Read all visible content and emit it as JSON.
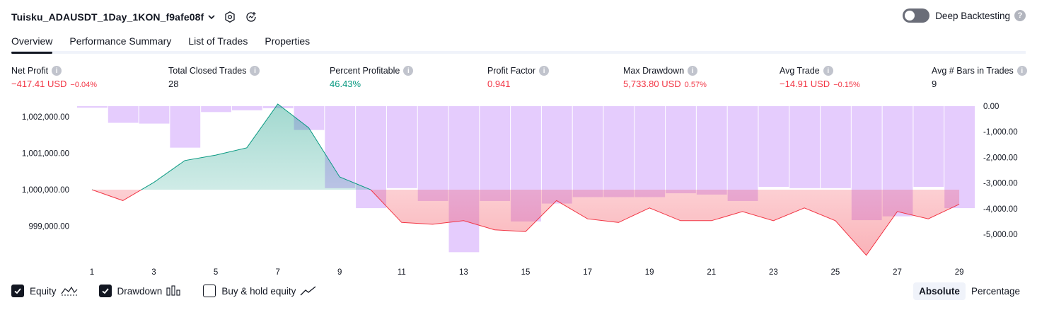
{
  "header": {
    "strategy_name": "Tuisku_ADAUSDT_1Day_1KON_f9afe08f"
  },
  "deep_backtesting": {
    "label": "Deep Backtesting",
    "enabled": false,
    "help": "?"
  },
  "tabs": [
    {
      "label": "Overview",
      "active": true
    },
    {
      "label": "Performance Summary",
      "active": false
    },
    {
      "label": "List of Trades",
      "active": false
    },
    {
      "label": "Properties",
      "active": false
    }
  ],
  "metrics": [
    {
      "label": "Net Profit",
      "value": "−417.41 USD",
      "pct": "−0.04%",
      "color": "red"
    },
    {
      "label": "Total Closed Trades",
      "value": "28",
      "pct": "",
      "color": "dark"
    },
    {
      "label": "Percent Profitable",
      "value": "46.43%",
      "pct": "",
      "color": "green"
    },
    {
      "label": "Profit Factor",
      "value": "0.941",
      "pct": "",
      "color": "red"
    },
    {
      "label": "Max Drawdown",
      "value": "5,733.80 USD",
      "pct": "0.57%",
      "color": "red"
    },
    {
      "label": "Avg Trade",
      "value": "−14.91 USD",
      "pct": "−0.15%",
      "color": "red"
    },
    {
      "label": "Avg # Bars in Trades",
      "value": "9",
      "pct": "",
      "color": "dark"
    }
  ],
  "chart_data": {
    "type": "line+bar",
    "x_ticks": [
      "1",
      "3",
      "5",
      "7",
      "9",
      "11",
      "13",
      "15",
      "17",
      "19",
      "21",
      "23",
      "25",
      "27",
      "29"
    ],
    "left_axis": {
      "ticks": [
        "1,002,000.00",
        "1,001,000.00",
        "1,000,000.00",
        "999,000.00"
      ],
      "tick_values": [
        1002000,
        1001000,
        1000000,
        999000
      ],
      "range": [
        998000,
        1002300
      ]
    },
    "right_axis": {
      "ticks": [
        "0.00",
        "-1,000.00",
        "-2,000.00",
        "-3,000.00",
        "-4,000.00",
        "-5,000.00"
      ],
      "tick_values": [
        0,
        -1000,
        -2000,
        -3000,
        -4000,
        -5000
      ],
      "range": [
        -5700,
        0
      ]
    },
    "equity": {
      "name": "Equity",
      "x": [
        1,
        2,
        3,
        4,
        5,
        6,
        7,
        8,
        9,
        10,
        11,
        12,
        13,
        14,
        15,
        16,
        17,
        18,
        19,
        20,
        21,
        22,
        23,
        24,
        25,
        26,
        27,
        28,
        29
      ],
      "values": [
        1000000,
        999700,
        1000200,
        1000800,
        1000950,
        1001150,
        1002350,
        1001700,
        1000350,
        1000000,
        999100,
        999050,
        999150,
        998900,
        998850,
        999700,
        999200,
        999100,
        999500,
        999150,
        999150,
        999400,
        999150,
        999500,
        999150,
        998200,
        999400,
        999200,
        999600
      ]
    },
    "drawdown": {
      "name": "Drawdown",
      "values": [
        -60,
        -650,
        -680,
        -1620,
        -230,
        -160,
        -80,
        -930,
        -3200,
        -3980,
        -3200,
        -3700,
        -5700,
        -3700,
        -4500,
        -3800,
        -3550,
        -3550,
        -3550,
        -3400,
        -3450,
        -3700,
        -3150,
        -3200,
        -3200,
        -4450,
        -4300,
        -3150,
        -3980
      ]
    },
    "buy_hold": {
      "name": "Buy & hold equity",
      "visible": false
    }
  },
  "legend": {
    "equity": {
      "label": "Equity",
      "checked": true
    },
    "drawdown": {
      "label": "Drawdown",
      "checked": true
    },
    "buy_hold": {
      "label": "Buy & hold equity",
      "checked": false
    }
  },
  "modes": {
    "absolute": "Absolute",
    "percentage": "Percentage",
    "active": "absolute"
  },
  "colors": {
    "equity_green": "#089981",
    "equity_red": "#f23645",
    "drawdown_bar": "#e1c3fd",
    "text": "#131722"
  }
}
